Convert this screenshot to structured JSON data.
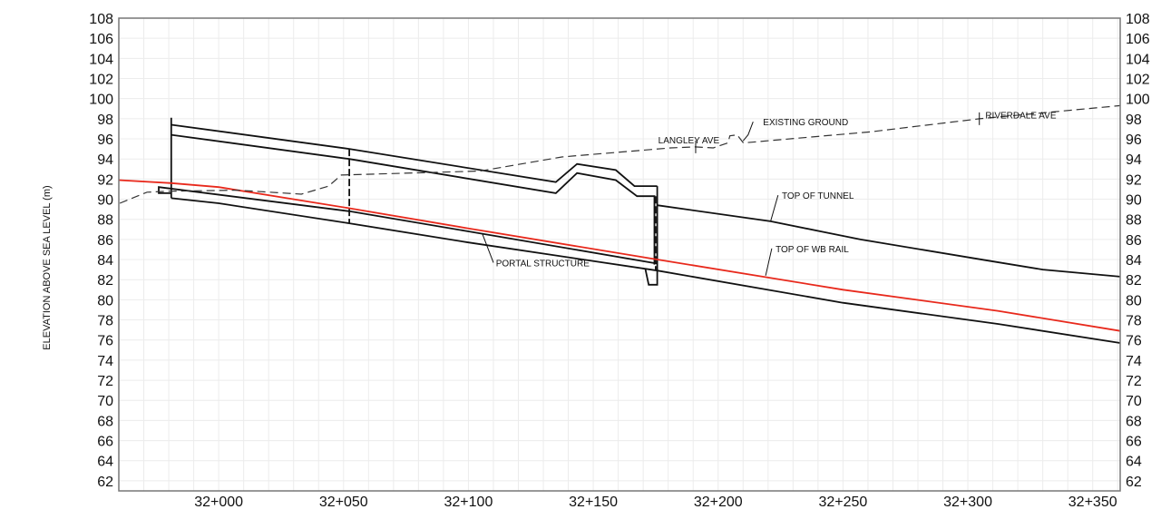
{
  "chart_data": {
    "type": "line",
    "title": "",
    "xlabel": "",
    "ylabel": "ELEVATION ABOVE SEA LEVEL (m)",
    "x_units": "chainage (m from 32+000)",
    "xlim": [
      -40,
      361
    ],
    "ylim": [
      61,
      108
    ],
    "grid": true,
    "x_ticks": [
      {
        "value": 0,
        "label": "32+000"
      },
      {
        "value": 50,
        "label": "32+050"
      },
      {
        "value": 100,
        "label": "32+100"
      },
      {
        "value": 150,
        "label": "32+150"
      },
      {
        "value": 200,
        "label": "32+200"
      },
      {
        "value": 250,
        "label": "32+250"
      },
      {
        "value": 300,
        "label": "32+300"
      },
      {
        "value": 350,
        "label": "32+350"
      }
    ],
    "y_ticks": [
      62,
      64,
      66,
      68,
      70,
      72,
      74,
      76,
      78,
      80,
      82,
      84,
      86,
      88,
      90,
      92,
      94,
      96,
      98,
      100,
      102,
      104,
      106,
      108
    ],
    "series": [
      {
        "name": "TOP OF WB RAIL",
        "color": "#e8291c",
        "style": "solid",
        "points": [
          [
            -40,
            91.9
          ],
          [
            -19,
            91.6
          ],
          [
            0,
            91.2
          ],
          [
            52.3,
            89.1
          ],
          [
            100,
            87.1
          ],
          [
            175.6,
            84.0
          ],
          [
            250,
            81.0
          ],
          [
            312,
            78.9
          ],
          [
            361,
            76.9
          ]
        ]
      },
      {
        "name": "TOP OF TUNNEL",
        "color": "#111111",
        "style": "solid",
        "points": [
          [
            175.6,
            89.4
          ],
          [
            221,
            87.8
          ],
          [
            257,
            86.0
          ],
          [
            308,
            83.9
          ],
          [
            330,
            83.0
          ],
          [
            361,
            82.3
          ]
        ]
      },
      {
        "name": "EXISTING GROUND",
        "color": "#333333",
        "style": "dashed",
        "points": [
          [
            -39.6,
            89.6
          ],
          [
            -28.7,
            90.7
          ],
          [
            -19.6,
            90.8
          ],
          [
            7.6,
            90.9
          ],
          [
            33.1,
            90.5
          ],
          [
            44.0,
            91.3
          ],
          [
            49.1,
            92.4
          ],
          [
            104.7,
            92.8
          ],
          [
            137.4,
            94.2
          ],
          [
            142.1,
            94.3
          ],
          [
            181.0,
            95.1
          ],
          [
            190.8,
            95.2
          ],
          [
            198.1,
            95.1
          ],
          [
            203.9,
            95.6
          ],
          [
            204.7,
            96.3
          ],
          [
            207.6,
            96.4
          ],
          [
            210.1,
            95.6
          ],
          [
            261.0,
            96.7
          ],
          [
            304.6,
            98.0
          ],
          [
            361,
            99.3
          ]
        ]
      },
      {
        "name": "PORTAL STRUCTURE",
        "color": "#111111",
        "style": "solid",
        "points": [
          [
            -19,
            90.1
          ],
          [
            0,
            89.6
          ],
          [
            52.3,
            87.6
          ],
          [
            100,
            85.7
          ],
          [
            175.6,
            82.9
          ],
          [
            250,
            79.7
          ],
          [
            312,
            77.6
          ],
          [
            361,
            75.7
          ]
        ]
      }
    ],
    "structure_lines": [
      {
        "points": [
          [
            -19,
            97.4
          ],
          [
            52.3,
            95.0
          ],
          [
            135,
            91.7
          ],
          [
            143.5,
            93.5
          ],
          [
            159,
            92.9
          ],
          [
            166.5,
            91.3
          ],
          [
            175.6,
            91.3
          ]
        ]
      },
      {
        "points": [
          [
            -19,
            96.4
          ],
          [
            52.3,
            94.0
          ],
          [
            135,
            90.6
          ],
          [
            143.5,
            92.6
          ],
          [
            159,
            91.9
          ],
          [
            167.5,
            90.3
          ],
          [
            174.5,
            90.3
          ],
          [
            174.5,
            83.5
          ]
        ]
      },
      {
        "points": [
          [
            -19,
            98.1
          ],
          [
            -19,
            90.1
          ]
        ]
      },
      {
        "points": [
          [
            175.6,
            91.3
          ],
          [
            175.6,
            81.5
          ],
          [
            172.2,
            81.5
          ],
          [
            170.8,
            83.1
          ]
        ]
      },
      {
        "points": [
          [
            -19,
            90.6
          ],
          [
            -24,
            90.6
          ],
          [
            -24,
            91.2
          ],
          [
            52.3,
            88.8
          ],
          [
            100,
            86.8
          ],
          [
            175.6,
            83.6
          ]
        ]
      }
    ],
    "dashed_sections": [
      {
        "points": [
          [
            52.3,
            95.0
          ],
          [
            52.3,
            87.6
          ]
        ]
      },
      {
        "points": [
          [
            175.0,
            90.3
          ],
          [
            175.0,
            82.9
          ]
        ]
      }
    ],
    "annotations": [
      {
        "text": "EXISTING GROUND",
        "at": [
          218,
          97.7
        ],
        "leader": [
          [
            214,
            97.7
          ],
          [
            212,
            96.4
          ],
          [
            210,
            95.8
          ]
        ]
      },
      {
        "text": "LANGLEY AVE",
        "at": [
          176,
          95.9
        ],
        "marker": [
          191,
          95.2
        ]
      },
      {
        "text": "RIVERDALE AVE",
        "at": [
          307,
          98.4
        ],
        "marker": [
          304.6,
          98.0
        ]
      },
      {
        "text": "TOP OF TUNNEL",
        "at": [
          225.5,
          90.4
        ],
        "leader": [
          [
            224,
            90.4
          ],
          [
            221,
            87.8
          ]
        ]
      },
      {
        "text": "TOP OF WB RAIL",
        "at": [
          223,
          85.1
        ],
        "leader": [
          [
            221.5,
            85.1
          ],
          [
            219,
            82.4
          ]
        ]
      },
      {
        "text": "PORTAL STRUCTURE",
        "at": [
          111,
          83.7
        ],
        "leader": [
          [
            110,
            83.7
          ],
          [
            105.5,
            86.6
          ]
        ]
      }
    ]
  }
}
